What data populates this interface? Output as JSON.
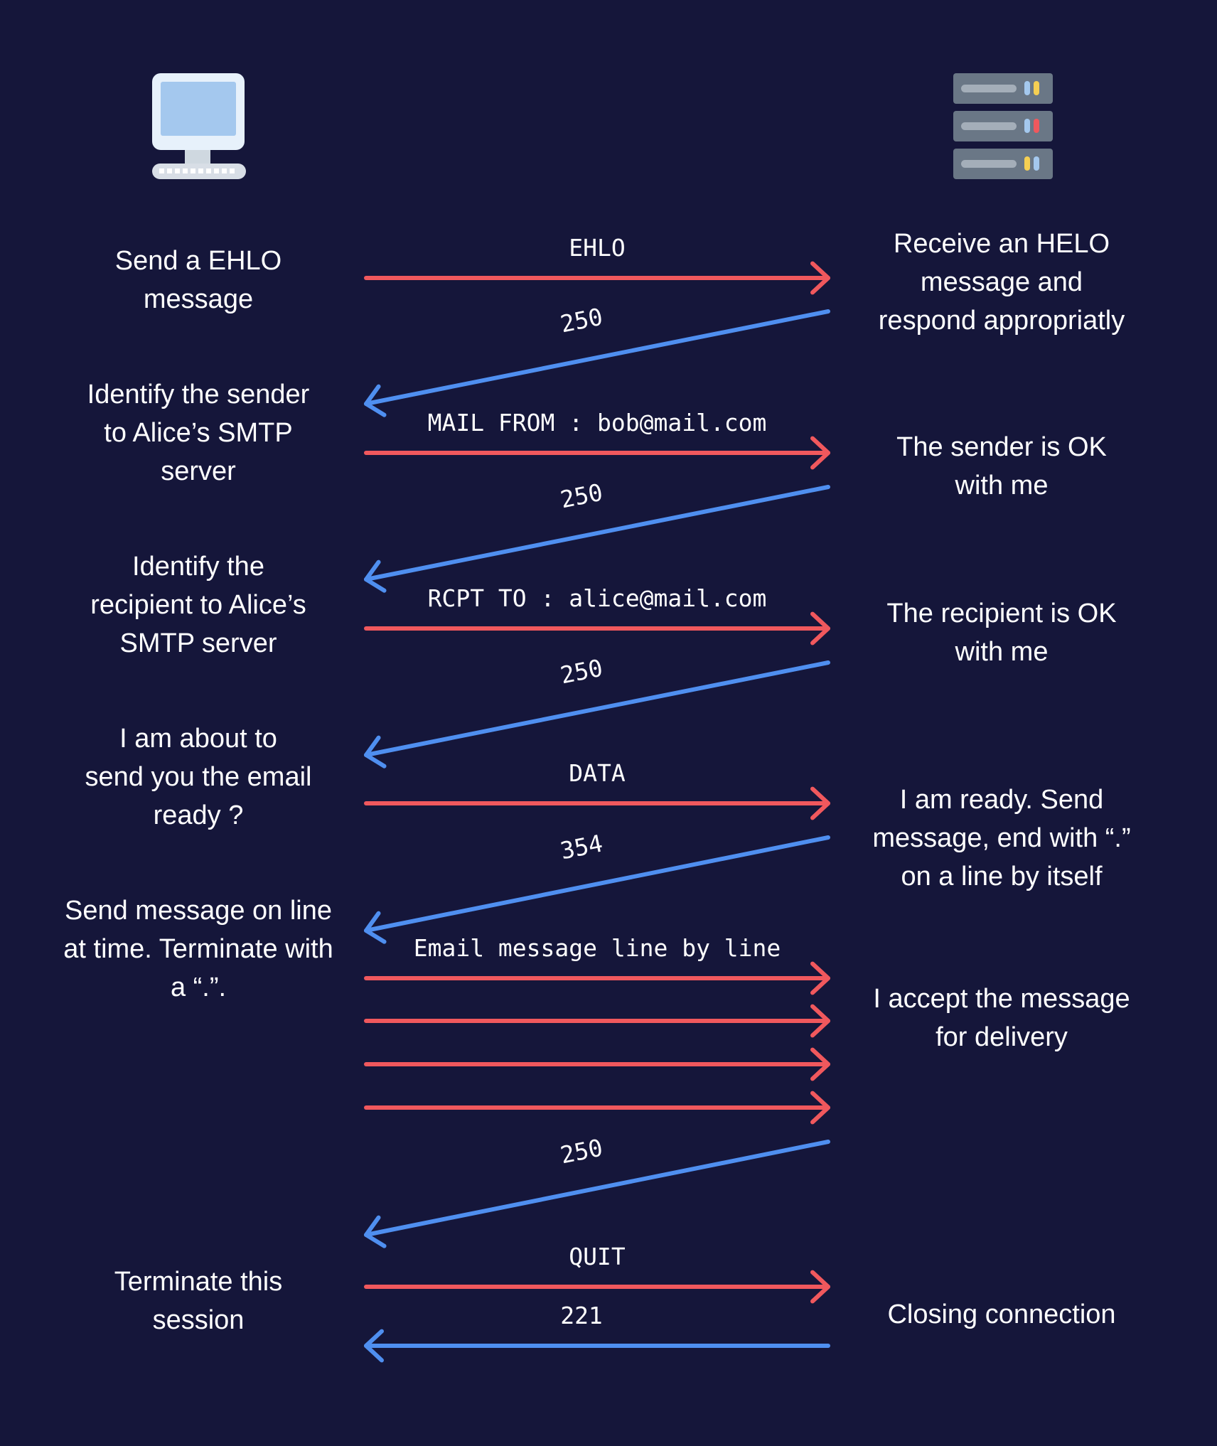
{
  "colors": {
    "background": "#15163a",
    "client_arrow": "#f0585d",
    "server_arrow": "#4f8ff0"
  },
  "client_icon": "desktop-computer-icon",
  "server_icon": "server-rack-icon",
  "client_steps": [
    "Send a EHLO\nmessage",
    "Identify the sender\nto Alice’s SMTP\nserver",
    "Identify the\nrecipient to Alice’s\nSMTP server",
    "I am about to\nsend you the email\nready ?",
    "Send message on line\nat time. Terminate with\na “.”.",
    "Terminate this\nsession"
  ],
  "server_steps": [
    "Receive an HELO\nmessage and\nrespond appropriatly",
    "The sender is OK\nwith me",
    "The recipient is OK\nwith me",
    "I am ready. Send\nmessage, end with “.”\non a line by itself",
    "I accept the message\nfor delivery",
    "Closing connection"
  ],
  "messages": [
    {
      "label": "EHLO",
      "direction": "to-server"
    },
    {
      "label": "250",
      "direction": "to-client"
    },
    {
      "label": "MAIL FROM : bob@mail.com",
      "direction": "to-server"
    },
    {
      "label": "250",
      "direction": "to-client"
    },
    {
      "label": "RCPT TO : alice@mail.com",
      "direction": "to-server"
    },
    {
      "label": "250",
      "direction": "to-client"
    },
    {
      "label": "DATA",
      "direction": "to-server"
    },
    {
      "label": "354",
      "direction": "to-client"
    },
    {
      "label": "Email message line by line",
      "direction": "to-server"
    },
    {
      "label": "",
      "direction": "to-server"
    },
    {
      "label": "",
      "direction": "to-server"
    },
    {
      "label": "",
      "direction": "to-server"
    },
    {
      "label": "250",
      "direction": "to-client"
    },
    {
      "label": "QUIT",
      "direction": "to-server"
    },
    {
      "label": "221",
      "direction": "to-client"
    }
  ]
}
